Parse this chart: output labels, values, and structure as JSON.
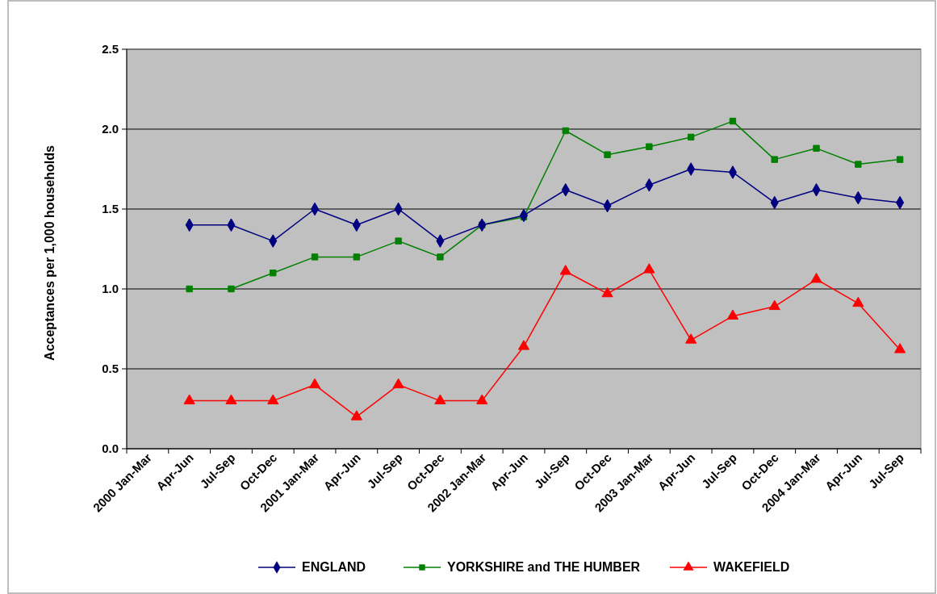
{
  "chart_data": {
    "type": "line",
    "ylabel": "Acceptances per 1,000 households",
    "categories": [
      "2000 Jan-Mar",
      "Apr-Jun",
      "Jul-Sep",
      "Oct-Dec",
      "2001 Jan-Mar",
      "Apr-Jun",
      "Jul-Sep",
      "Oct-Dec",
      "2002 Jan-Mar",
      "Apr-Jun",
      "Jul-Sep",
      "Oct-Dec",
      "2003 Jan-Mar",
      "Apr-Jun",
      "Jul-Sep",
      "Oct-Dec",
      "2004 Jan-Mar",
      "Apr-Jun",
      "Jul-Sep"
    ],
    "series": [
      {
        "name": "ENGLAND",
        "color": "#000080",
        "marker": "diamond",
        "values": [
          null,
          1.4,
          1.4,
          1.3,
          1.5,
          1.4,
          1.5,
          1.3,
          1.4,
          1.46,
          1.62,
          1.52,
          1.65,
          1.75,
          1.73,
          1.54,
          1.62,
          1.57,
          1.54
        ]
      },
      {
        "name": "YORKSHIRE and THE HUMBER",
        "color": "#008000",
        "marker": "square",
        "values": [
          null,
          1.0,
          1.0,
          1.1,
          1.2,
          1.2,
          1.3,
          1.2,
          1.4,
          1.45,
          1.99,
          1.84,
          1.89,
          1.95,
          2.05,
          1.81,
          1.88,
          1.78,
          1.81
        ]
      },
      {
        "name": "WAKEFIELD",
        "color": "#ff0000",
        "marker": "triangle",
        "values": [
          null,
          0.3,
          0.3,
          0.3,
          0.4,
          0.2,
          0.4,
          0.3,
          0.3,
          0.64,
          1.11,
          0.97,
          1.12,
          0.68,
          0.83,
          0.89,
          1.06,
          0.91,
          0.62
        ]
      }
    ],
    "ylim": [
      0,
      2.5
    ],
    "yticks": [
      {
        "value": 0,
        "label": "0.0"
      },
      {
        "value": 0.5,
        "label": "0.5"
      },
      {
        "value": 1,
        "label": "1.0"
      },
      {
        "value": 1.5,
        "label": "1.5"
      },
      {
        "value": 2,
        "label": "2.0"
      },
      {
        "value": 2.5,
        "label": "2.5"
      }
    ],
    "grid": "y",
    "legend": "bottom",
    "line_style": "solid"
  }
}
